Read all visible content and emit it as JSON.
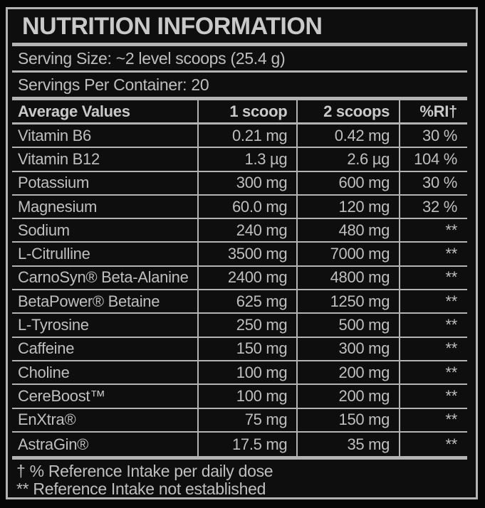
{
  "label": {
    "title": "NUTRITION INFORMATION",
    "serving_size": "Serving Size: ~2 level scoops (25.4 g)",
    "servings_per_container": "Servings Per Container: 20",
    "table": {
      "headers": [
        "Average Values",
        "1 scoop",
        "2 scoops",
        "%RI†"
      ],
      "rows": [
        {
          "name": "Vitamin B6",
          "one_scoop": "0.21 mg",
          "two_scoops": "0.42 mg",
          "ri": "30 %"
        },
        {
          "name": "Vitamin B12",
          "one_scoop": "1.3 µg",
          "two_scoops": "2.6 µg",
          "ri": "104 %"
        },
        {
          "name": "Potassium",
          "one_scoop": "300 mg",
          "two_scoops": "600 mg",
          "ri": "30 %"
        },
        {
          "name": "Magnesium",
          "one_scoop": "60.0 mg",
          "two_scoops": "120 mg",
          "ri": "32 %"
        },
        {
          "name": "Sodium",
          "one_scoop": "240 mg",
          "two_scoops": "480 mg",
          "ri": "**"
        },
        {
          "name": "L-Citrulline",
          "one_scoop": "3500 mg",
          "two_scoops": "7000 mg",
          "ri": "**"
        },
        {
          "name": "CarnoSyn® Beta-Alanine",
          "one_scoop": "2400 mg",
          "two_scoops": "4800 mg",
          "ri": "**"
        },
        {
          "name": "BetaPower® Betaine",
          "one_scoop": "625 mg",
          "two_scoops": "1250 mg",
          "ri": "**"
        },
        {
          "name": "L-Tyrosine",
          "one_scoop": "250 mg",
          "two_scoops": "500 mg",
          "ri": "**"
        },
        {
          "name": "Caffeine",
          "one_scoop": "150 mg",
          "two_scoops": "300 mg",
          "ri": "**"
        },
        {
          "name": "Choline",
          "one_scoop": "100 mg",
          "two_scoops": "200 mg",
          "ri": "**"
        },
        {
          "name": "CereBoost™",
          "one_scoop": "100 mg",
          "two_scoops": "200 mg",
          "ri": "**"
        },
        {
          "name": "EnXtra®",
          "one_scoop": "75 mg",
          "two_scoops": "150 mg",
          "ri": "**"
        },
        {
          "name": "AstraGin®",
          "one_scoop": "17.5 mg",
          "two_scoops": "35 mg",
          "ri": "**"
        }
      ]
    },
    "footnotes": [
      "† % Reference Intake per daily dose",
      "** Reference Intake not established"
    ],
    "colors": {
      "background": "#0e0e0e",
      "text": "#bfbfbf",
      "line": "#b3b3b3"
    }
  }
}
